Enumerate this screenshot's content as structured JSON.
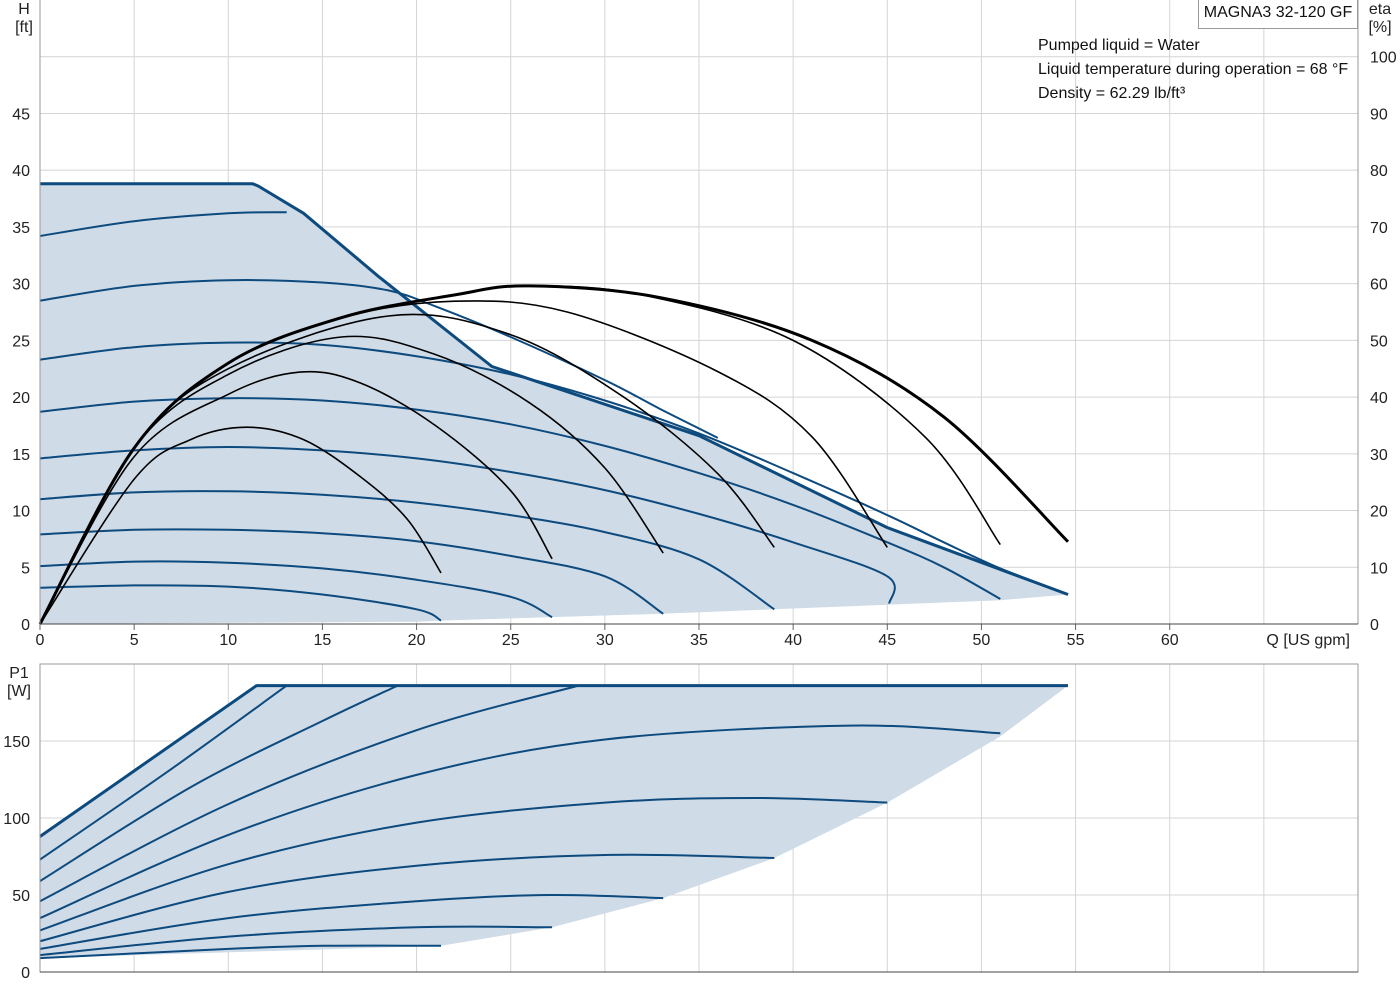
{
  "model": "MAGNA3 32-120 GF",
  "info_lines": [
    "Pumped liquid = Water",
    "Liquid temperature during operation = 68 °F",
    "Density = 62.29 lb/ft³"
  ],
  "colors": {
    "fill": "#cfdbe7",
    "curve": "#0d4a7e",
    "efficiency": "#000000",
    "grid": "#d4d4d4",
    "frame": "#9a9a9a"
  },
  "chart_data": [
    {
      "type": "line",
      "title": "",
      "xlabel": "Q [US gpm]",
      "ylabel_left": [
        "H",
        "[ft]"
      ],
      "ylabel_right": [
        "eta",
        "[%]"
      ],
      "xlim": [
        0,
        70
      ],
      "ylim": [
        0,
        55
      ],
      "ylim_right": [
        0,
        110
      ],
      "x_ticks": [
        0,
        5,
        10,
        15,
        20,
        25,
        30,
        35,
        40,
        45,
        50,
        55,
        60
      ],
      "y_ticks": [
        0,
        5,
        10,
        15,
        20,
        25,
        30,
        35,
        40,
        45
      ],
      "y_ticks_right": [
        0,
        10,
        20,
        30,
        40,
        50,
        60,
        70,
        80,
        90,
        100
      ],
      "grid": true,
      "head_envelope": [
        [
          0,
          38.8
        ],
        [
          11.3,
          38.8
        ],
        [
          11.6,
          38.6
        ],
        [
          14,
          36.2
        ],
        [
          18,
          30.6
        ],
        [
          24,
          22.7
        ],
        [
          35,
          16.6
        ],
        [
          45,
          8.5
        ],
        [
          54.6,
          2.6
        ],
        [
          51,
          2.1
        ],
        [
          45,
          1.7
        ],
        [
          39,
          1.3
        ],
        [
          33,
          0.9
        ],
        [
          27,
          0.6
        ],
        [
          21.3,
          0.3
        ],
        [
          20,
          0.2
        ]
      ],
      "head_curves": [
        {
          "points": [
            [
              0,
              38.8
            ],
            [
              11.3,
              38.8
            ],
            [
              11.6,
              38.6
            ],
            [
              14,
              36.2
            ],
            [
              18,
              30.6
            ],
            [
              24,
              22.7
            ],
            [
              35,
              16.6
            ],
            [
              45,
              8.5
            ],
            [
              54.6,
              2.6
            ]
          ]
        },
        {
          "points": [
            [
              0,
              34.2
            ],
            [
              5,
              35.5
            ],
            [
              10,
              36.2
            ],
            [
              13.1,
              36.3
            ]
          ]
        },
        {
          "points": [
            [
              0,
              28.5
            ],
            [
              5,
              29.8
            ],
            [
              10,
              30.3
            ],
            [
              15,
              30.1
            ],
            [
              18.5,
              29.4
            ],
            [
              21,
              28.0
            ],
            [
              25,
              25.3
            ],
            [
              30,
              21.5
            ],
            [
              33,
              18.9
            ],
            [
              36,
              16.4
            ]
          ]
        },
        {
          "points": [
            [
              0,
              23.3
            ],
            [
              5,
              24.4
            ],
            [
              10,
              24.8
            ],
            [
              15,
              24.6
            ],
            [
              20,
              23.6
            ],
            [
              25,
              22.0
            ],
            [
              30,
              19.7
            ],
            [
              35,
              16.8
            ],
            [
              40,
              13.3
            ],
            [
              45,
              9.6
            ],
            [
              48,
              7.2
            ],
            [
              51,
              4.9
            ],
            [
              54.6,
              2.6
            ]
          ]
        },
        {
          "points": [
            [
              0,
              18.7
            ],
            [
              5,
              19.6
            ],
            [
              10,
              19.9
            ],
            [
              15,
              19.7
            ],
            [
              20,
              18.9
            ],
            [
              25,
              17.6
            ],
            [
              30,
              15.7
            ],
            [
              35,
              13.3
            ],
            [
              40,
              10.5
            ],
            [
              45,
              7.2
            ],
            [
              48,
              5.0
            ],
            [
              51,
              2.2
            ]
          ]
        },
        {
          "points": [
            [
              0,
              14.6
            ],
            [
              5,
              15.3
            ],
            [
              10,
              15.6
            ],
            [
              15,
              15.3
            ],
            [
              20,
              14.6
            ],
            [
              25,
              13.4
            ],
            [
              30,
              11.8
            ],
            [
              35,
              9.7
            ],
            [
              40,
              7.2
            ],
            [
              45,
              4.2
            ],
            [
              45.1,
              1.8
            ]
          ]
        },
        {
          "points": [
            [
              0,
              11.0
            ],
            [
              5,
              11.6
            ],
            [
              10,
              11.7
            ],
            [
              15,
              11.4
            ],
            [
              20,
              10.7
            ],
            [
              25,
              9.6
            ],
            [
              30,
              8.1
            ],
            [
              35,
              5.7
            ],
            [
              39,
              1.3
            ]
          ]
        },
        {
          "points": [
            [
              0,
              7.9
            ],
            [
              5,
              8.3
            ],
            [
              10,
              8.3
            ],
            [
              15,
              8.0
            ],
            [
              20,
              7.3
            ],
            [
              25,
              6.0
            ],
            [
              30,
              4.2
            ],
            [
              33.1,
              0.9
            ]
          ]
        },
        {
          "points": [
            [
              0,
              5.1
            ],
            [
              5,
              5.5
            ],
            [
              10,
              5.4
            ],
            [
              15,
              4.9
            ],
            [
              20,
              3.9
            ],
            [
              25,
              2.4
            ],
            [
              27.2,
              0.6
            ]
          ]
        },
        {
          "points": [
            [
              0,
              3.2
            ],
            [
              5,
              3.4
            ],
            [
              10,
              3.3
            ],
            [
              15,
              2.6
            ],
            [
              20,
              1.3
            ],
            [
              21.3,
              0.3
            ]
          ]
        }
      ],
      "efficiency_curves": [
        {
          "points": [
            [
              0,
              0
            ],
            [
              5,
              25.5
            ],
            [
              8,
              32.5
            ],
            [
              11,
              34.7
            ],
            [
              14,
              32.5
            ],
            [
              17,
              26.0
            ],
            [
              19.5,
              18.5
            ],
            [
              21.3,
              9.0
            ]
          ]
        },
        {
          "points": [
            [
              0,
              0
            ],
            [
              5,
              29.5
            ],
            [
              10,
              40.5
            ],
            [
              13.8,
              44.4
            ],
            [
              17,
              42.5
            ],
            [
              21,
              35.0
            ],
            [
              25,
              23.5
            ],
            [
              27.2,
              11.5
            ]
          ]
        },
        {
          "points": [
            [
              0,
              0
            ],
            [
              5,
              31
            ],
            [
              10,
              44
            ],
            [
              16,
              50.6
            ],
            [
              21,
              47.5
            ],
            [
              26,
              39.0
            ],
            [
              30,
              27.5
            ],
            [
              33.1,
              12.5
            ]
          ]
        },
        {
          "points": [
            [
              0,
              0
            ],
            [
              5,
              31
            ],
            [
              10,
              45
            ],
            [
              18.5,
              54.3
            ],
            [
              25,
              51.0
            ],
            [
              31,
              40.0
            ],
            [
              36,
              26.5
            ],
            [
              39,
              13.5
            ]
          ]
        },
        {
          "points": [
            [
              0,
              0
            ],
            [
              5,
              31
            ],
            [
              10,
              46
            ],
            [
              16,
              54
            ],
            [
              22,
              56.9
            ],
            [
              28,
              55.0
            ],
            [
              36,
              44.5
            ],
            [
              41,
              33.0
            ],
            [
              45,
              13.5
            ]
          ]
        },
        {
          "points": [
            [
              0,
              0
            ],
            [
              5,
              31
            ],
            [
              10,
              46
            ],
            [
              16,
              54
            ],
            [
              22,
              58
            ],
            [
              26,
              59.6
            ],
            [
              32,
              58.0
            ],
            [
              40,
              50.0
            ],
            [
              47,
              33.0
            ],
            [
              51,
              14.0
            ]
          ]
        },
        {
          "points": [
            [
              0,
              0
            ],
            [
              5,
              31
            ],
            [
              10,
              46
            ],
            [
              16,
              54
            ],
            [
              22,
              58
            ],
            [
              26,
              59.6
            ],
            [
              33,
              57.5
            ],
            [
              41,
              50.0
            ],
            [
              48,
              36.5
            ],
            [
              54.6,
              14.5
            ]
          ],
          "bold": true
        }
      ]
    },
    {
      "type": "line",
      "title": "",
      "xlabel": "",
      "ylabel": [
        "P1",
        "[W]"
      ],
      "xlim": [
        0,
        70
      ],
      "ylim": [
        0,
        200
      ],
      "x_ticks": [
        0,
        5,
        10,
        15,
        20,
        25,
        30,
        35,
        40,
        45,
        50,
        55,
        60
      ],
      "y_ticks": [
        0,
        50,
        100,
        150
      ],
      "grid": true,
      "power_envelope": [
        [
          0,
          88
        ],
        [
          11.5,
          186
        ],
        [
          54.6,
          186
        ],
        [
          51,
          153
        ],
        [
          45,
          110
        ],
        [
          39,
          74
        ],
        [
          33.1,
          48
        ],
        [
          27.2,
          29
        ],
        [
          21.3,
          17
        ],
        [
          0,
          9
        ]
      ],
      "power_curves": [
        {
          "points": [
            [
              0,
              88
            ],
            [
              11.5,
              186
            ],
            [
              54.6,
              186
            ]
          ],
          "bold": true
        },
        {
          "points": [
            [
              0,
              73
            ],
            [
              7,
              132
            ],
            [
              13.1,
              186
            ]
          ]
        },
        {
          "points": [
            [
              0,
              59
            ],
            [
              8,
              120
            ],
            [
              15,
              163
            ],
            [
              19,
              186
            ]
          ]
        },
        {
          "points": [
            [
              0,
              46
            ],
            [
              10,
              109
            ],
            [
              20,
              157
            ],
            [
              28.6,
              186
            ]
          ]
        },
        {
          "points": [
            [
              0,
              35
            ],
            [
              10,
              89
            ],
            [
              20,
              128
            ],
            [
              30,
              151
            ],
            [
              43,
              160
            ],
            [
              51,
              155
            ]
          ]
        },
        {
          "points": [
            [
              0,
              27
            ],
            [
              10,
              70
            ],
            [
              20,
              97
            ],
            [
              30,
              110
            ],
            [
              38,
              113
            ],
            [
              45,
              110
            ]
          ]
        },
        {
          "points": [
            [
              0,
              20
            ],
            [
              10,
              52
            ],
            [
              20,
              69
            ],
            [
              30,
              76
            ],
            [
              39,
              74
            ]
          ]
        },
        {
          "points": [
            [
              0,
              15
            ],
            [
              10,
              35
            ],
            [
              20,
              46
            ],
            [
              27,
              50
            ],
            [
              33.1,
              48
            ]
          ]
        },
        {
          "points": [
            [
              0,
              11
            ],
            [
              10,
              23
            ],
            [
              20,
              29
            ],
            [
              27.2,
              29
            ]
          ]
        },
        {
          "points": [
            [
              0,
              9
            ],
            [
              10,
              15
            ],
            [
              15,
              17
            ],
            [
              21.3,
              17
            ]
          ]
        }
      ]
    }
  ]
}
